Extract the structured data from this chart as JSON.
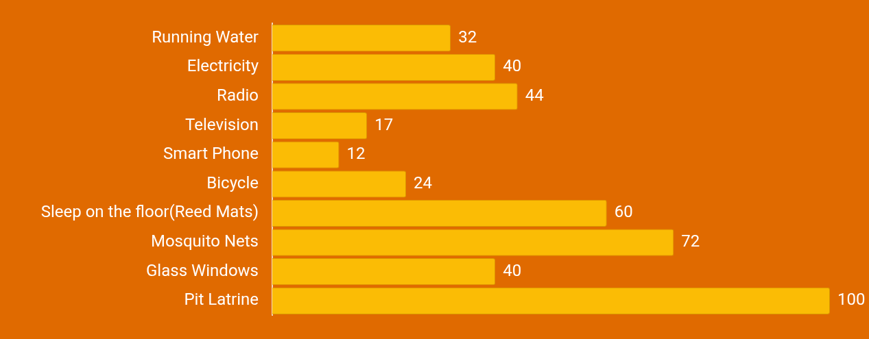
{
  "chart_data": {
    "type": "bar",
    "orientation": "horizontal",
    "categories": [
      "Running Water",
      "Electricity",
      "Radio",
      "Television",
      "Smart Phone",
      "Bicycle",
      "Sleep on the floor(Reed Mats)",
      "Mosquito Nets",
      "Glass Windows",
      "Pit Latrine"
    ],
    "values": [
      32,
      40,
      44,
      17,
      12,
      24,
      60,
      72,
      40,
      100
    ],
    "color": "#fbbc05",
    "xlim": [
      0,
      100
    ],
    "tick_labels": "y",
    "data_labels": true,
    "grid": false,
    "legend": false
  }
}
